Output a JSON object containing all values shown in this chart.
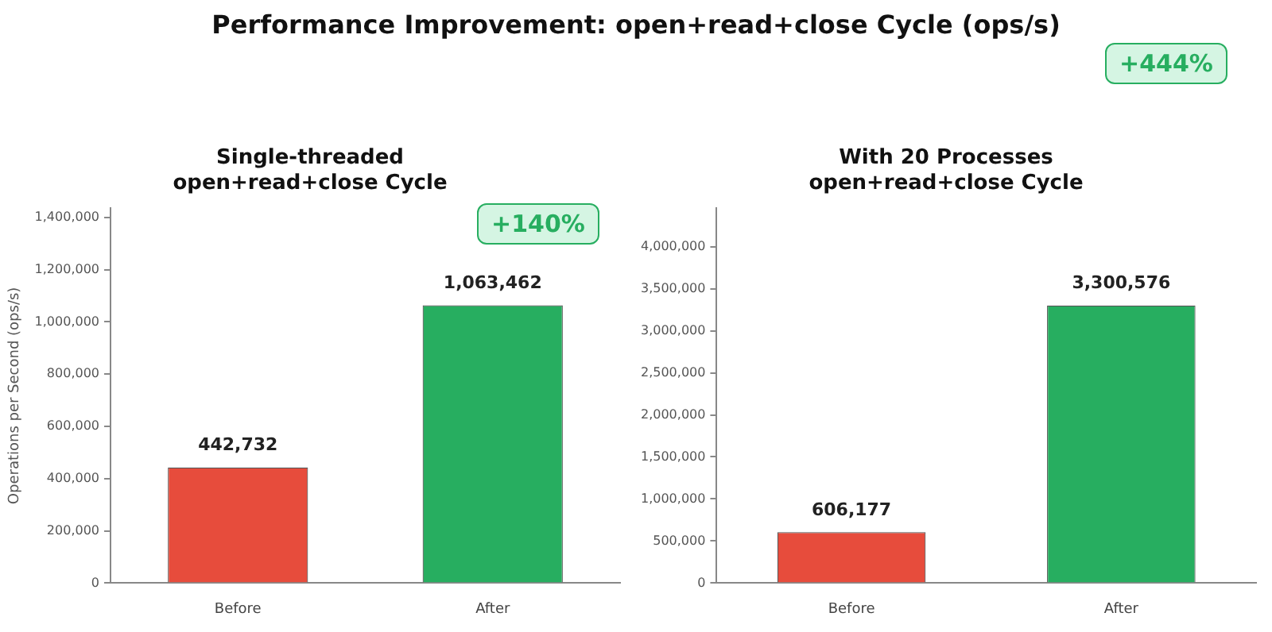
{
  "chart_data": [
    {
      "type": "bar",
      "title": "Single-threaded\nopen+read+close Cycle",
      "ylabel": "Operations per Second (ops/s)",
      "categories": [
        "Before",
        "After"
      ],
      "values": [
        442732,
        1063462
      ],
      "value_labels": [
        "442,732",
        "1,063,462"
      ],
      "colors": [
        "#e74c3c",
        "#27ae60"
      ],
      "ylim": [
        0,
        1435000
      ],
      "yticks": [
        0,
        {
          "value": 200000,
          "label": "200,000"
        },
        {
          "value": 400000,
          "label": "400,000"
        },
        {
          "value": 600000,
          "label": "600,000"
        },
        {
          "value": 800000,
          "label": "800,000"
        },
        {
          "value": 1000000,
          "label": "1,000,000"
        },
        {
          "value": 1200000,
          "label": "1,200,000"
        },
        {
          "value": 1400000,
          "label": "1,400,000"
        }
      ],
      "grid": false,
      "annotations": [
        "Performance Improvement: open+read+close Cycle (ops/s)",
        "+140%"
      ]
    },
    {
      "type": "bar",
      "title": "With 20 Processes\nopen+read+close Cycle",
      "categories": [
        "Before",
        "After"
      ],
      "values": [
        606177,
        3300576
      ],
      "value_labels": [
        "606,177",
        "3,300,576"
      ],
      "colors": [
        "#e74c3c",
        "#27ae60"
      ],
      "ylim": [
        0,
        4455000
      ],
      "yticks": [
        0,
        {
          "value": 500000,
          "label": "500,000"
        },
        {
          "value": 1000000,
          "label": "1,000,000"
        },
        {
          "value": 1500000,
          "label": "1,500,000"
        },
        {
          "value": 2000000,
          "label": "2,000,000"
        },
        {
          "value": 2500000,
          "label": "2,500,000"
        },
        {
          "value": 3000000,
          "label": "3,000,000"
        },
        {
          "value": 3500000,
          "label": "3,500,000"
        },
        {
          "value": 4000000,
          "label": "4,000,000"
        }
      ],
      "grid": false,
      "annotations": [
        "+444%"
      ]
    }
  ]
}
